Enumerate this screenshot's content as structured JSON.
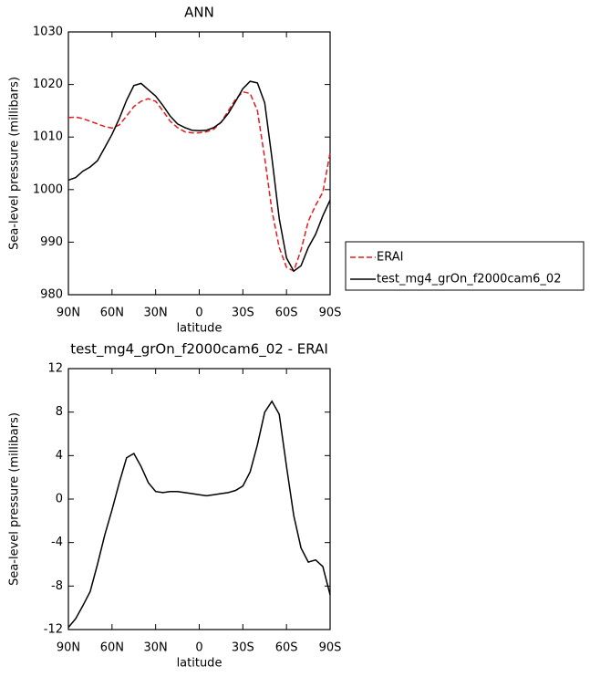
{
  "chart_data": [
    {
      "type": "line",
      "title": "ANN",
      "xlabel": "latitude",
      "ylabel": "Sea-level pressure (millibars)",
      "x": [
        90,
        85,
        80,
        75,
        70,
        65,
        60,
        55,
        50,
        45,
        40,
        35,
        30,
        25,
        20,
        15,
        10,
        5,
        0,
        -5,
        -10,
        -15,
        -20,
        -25,
        -30,
        -35,
        -40,
        -45,
        -50,
        -55,
        -60,
        -65,
        -70,
        -75,
        -80,
        -85,
        -90
      ],
      "xlim": [
        90,
        -90
      ],
      "xticks": [
        {
          "value": 90,
          "label": "90N"
        },
        {
          "value": 60,
          "label": "60N"
        },
        {
          "value": 30,
          "label": "30N"
        },
        0,
        {
          "value": -30,
          "label": "30S"
        },
        {
          "value": -60,
          "label": "60S"
        },
        {
          "value": -90,
          "label": "90S"
        }
      ],
      "ylim": [
        980,
        1030
      ],
      "yticks": [
        980,
        990,
        1000,
        1010,
        1020,
        1030
      ],
      "legend": "outside-right",
      "series": [
        {
          "name": "ERAI",
          "color": "#e41a1c",
          "dash": "dashed",
          "values": [
            1013.7,
            1013.8,
            1013.5,
            1013,
            1012.5,
            1012,
            1011.7,
            1012.3,
            1014,
            1015.8,
            1016.8,
            1017.3,
            1016.8,
            1015,
            1013,
            1011.8,
            1011,
            1010.8,
            1010.8,
            1011,
            1011.5,
            1012.8,
            1015,
            1017.2,
            1018.6,
            1018.3,
            1015,
            1006,
            996,
            989,
            985.2,
            984.5,
            988.5,
            994,
            997,
            999.5,
            1007
          ]
        },
        {
          "name": "test_mg4_grOn_f2000cam6_02",
          "color": "#000000",
          "dash": "solid",
          "values": [
            1001.8,
            1002.3,
            1003.5,
            1004.3,
            1005.5,
            1008,
            1010.5,
            1013.5,
            1017,
            1019.8,
            1020.2,
            1019,
            1017.8,
            1016,
            1014,
            1012.5,
            1011.8,
            1011.3,
            1011.2,
            1011.3,
            1011.8,
            1012.8,
            1014.5,
            1016.8,
            1019.2,
            1020.6,
            1020.3,
            1016.5,
            1006,
            994.5,
            987,
            984.5,
            985.5,
            989,
            991.5,
            995,
            998
          ]
        }
      ]
    },
    {
      "type": "line",
      "title": "test_mg4_grOn_f2000cam6_02 - ERAI",
      "xlabel": "latitude",
      "ylabel": "Sea-level pressure (millibars)",
      "x": [
        90,
        85,
        80,
        75,
        70,
        65,
        60,
        55,
        50,
        45,
        40,
        35,
        30,
        25,
        20,
        15,
        10,
        5,
        0,
        -5,
        -10,
        -15,
        -20,
        -25,
        -30,
        -35,
        -40,
        -45,
        -50,
        -55,
        -60,
        -65,
        -70,
        -75,
        -80,
        -85,
        -90
      ],
      "xlim": [
        90,
        -90
      ],
      "xticks": [
        {
          "value": 90,
          "label": "90N"
        },
        {
          "value": 60,
          "label": "60N"
        },
        {
          "value": 30,
          "label": "30N"
        },
        0,
        {
          "value": -30,
          "label": "30S"
        },
        {
          "value": -60,
          "label": "60S"
        },
        {
          "value": -90,
          "label": "90S"
        }
      ],
      "ylim": [
        -12,
        12
      ],
      "yticks": [
        -12,
        -8,
        -4,
        0,
        4,
        8,
        12
      ],
      "series": [
        {
          "color": "#000000",
          "dash": "solid",
          "values": [
            -11.8,
            -11,
            -9.8,
            -8.5,
            -6,
            -3.3,
            -1,
            1.5,
            3.8,
            4.2,
            3,
            1.5,
            0.7,
            0.6,
            0.7,
            0.7,
            0.6,
            0.5,
            0.4,
            0.3,
            0.4,
            0.5,
            0.6,
            0.8,
            1.2,
            2.5,
            5,
            8,
            9,
            7.8,
            3,
            -1.5,
            -4.5,
            -5.8,
            -5.6,
            -6.2,
            -8.8
          ]
        }
      ]
    }
  ]
}
